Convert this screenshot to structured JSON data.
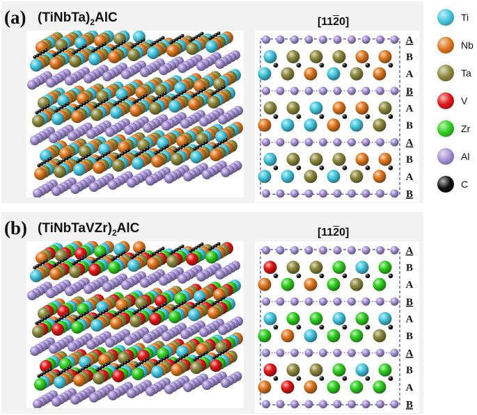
{
  "panels": [
    {
      "letter": "(a)",
      "formula_main": "(TiNbTa)",
      "formula_sub": "2",
      "formula_tail": "AlC",
      "direction_prefix": "[11",
      "direction_bar": "2",
      "direction_suffix": "0]",
      "stack": [
        {
          "letter": "A",
          "underline": true
        },
        {
          "letter": "B",
          "underline": false
        },
        {
          "letter": "A",
          "underline": false
        },
        {
          "letter": "B",
          "underline": true
        },
        {
          "letter": "A",
          "underline": false
        },
        {
          "letter": "B",
          "underline": false
        },
        {
          "letter": "A",
          "underline": true
        },
        {
          "letter": "B",
          "underline": false
        },
        {
          "letter": "A",
          "underline": false
        },
        {
          "letter": "B",
          "underline": true
        }
      ],
      "projection_rows": [
        [
          "Al",
          "Al",
          "Al",
          "Al",
          "Al",
          "Al",
          "Al",
          "Al",
          "Al",
          "Al"
        ],
        [
          "Ti",
          "Ta",
          "Ta",
          "Ta",
          "Nb",
          "Nb"
        ],
        [
          "Ti",
          "Ta",
          "Nb",
          "Ti",
          "Ta",
          "Nb"
        ],
        [
          "Al",
          "Al",
          "Al",
          "Al",
          "Al",
          "Al",
          "Al",
          "Al",
          "Al",
          "Al"
        ],
        [
          "Ta",
          "Ta",
          "Ti",
          "Nb",
          "Nb",
          "Ta"
        ],
        [
          "Nb",
          "Ti",
          "Ti",
          "Nb",
          "Ti",
          "Ta"
        ],
        [
          "Al",
          "Al",
          "Al",
          "Al",
          "Al",
          "Al",
          "Al",
          "Al",
          "Al",
          "Al"
        ],
        [
          "Ti",
          "Ta",
          "Ta",
          "Ta",
          "Nb",
          "Nb"
        ],
        [
          "Ti",
          "Ti",
          "Ta",
          "Ti",
          "Ta",
          "Nb"
        ],
        [
          "Al",
          "Al",
          "Al",
          "Al",
          "Al",
          "Al",
          "Al",
          "Al",
          "Al",
          "Al"
        ]
      ],
      "perspective_palette": [
        "Ti",
        "Nb",
        "Ta"
      ]
    },
    {
      "letter": "(b)",
      "formula_main": "(TiNbTaVZr)",
      "formula_sub": "2",
      "formula_tail": "AlC",
      "direction_prefix": "[11",
      "direction_bar": "2",
      "direction_suffix": "0]",
      "stack": [
        {
          "letter": "A",
          "underline": true
        },
        {
          "letter": "B",
          "underline": false
        },
        {
          "letter": "A",
          "underline": false
        },
        {
          "letter": "B",
          "underline": true
        },
        {
          "letter": "A",
          "underline": false
        },
        {
          "letter": "B",
          "underline": false
        },
        {
          "letter": "A",
          "underline": true
        },
        {
          "letter": "B",
          "underline": false
        },
        {
          "letter": "A",
          "underline": false
        },
        {
          "letter": "B",
          "underline": true
        }
      ],
      "projection_rows": [
        [
          "Al",
          "Al",
          "Al",
          "Al",
          "Al",
          "Al",
          "Al",
          "Al",
          "Al",
          "Al"
        ],
        [
          "V",
          "Ta",
          "Ta",
          "Zr",
          "Ti",
          "Zr"
        ],
        [
          "Nb",
          "Zr",
          "Nb",
          "Zr",
          "Ta",
          "Zr"
        ],
        [
          "Al",
          "Al",
          "Al",
          "Al",
          "Al",
          "Al",
          "Al",
          "Al",
          "Al",
          "Al"
        ],
        [
          "Ti",
          "Zr",
          "Zr",
          "Ti",
          "Zr",
          "Ti"
        ],
        [
          "Zr",
          "Nb",
          "Ti",
          "Zr",
          "Zr",
          "Ta"
        ],
        [
          "Al",
          "Al",
          "Al",
          "Al",
          "Al",
          "Al",
          "Al",
          "Al",
          "Al",
          "Al"
        ],
        [
          "V",
          "Ta",
          "Ta",
          "Zr",
          "Ti",
          "Zr"
        ],
        [
          "Nb",
          "V",
          "Nb",
          "Zr",
          "Zr",
          "Zr"
        ],
        [
          "Al",
          "Al",
          "Al",
          "Al",
          "Al",
          "Al",
          "Al",
          "Al",
          "Al",
          "Al"
        ]
      ],
      "perspective_palette": [
        "Ti",
        "Nb",
        "Ta",
        "V",
        "Zr"
      ]
    }
  ],
  "legend": [
    {
      "label": "Ti",
      "color": "#45c8e0"
    },
    {
      "label": "Nb",
      "color": "#e07820"
    },
    {
      "label": "Ta",
      "color": "#8e8a3e"
    },
    {
      "label": "V",
      "color": "#e01818"
    },
    {
      "label": "Zr",
      "color": "#30d020"
    },
    {
      "label": "Al",
      "color": "#a692d6"
    },
    {
      "label": "C",
      "color": "#101010"
    }
  ]
}
